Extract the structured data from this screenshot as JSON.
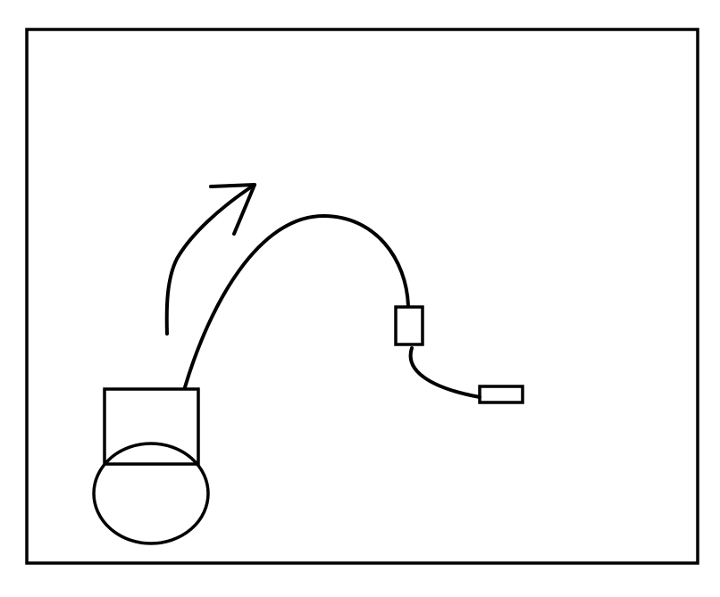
{
  "diagram": {
    "stroke_color": "#000000",
    "background_color": "#ffffff",
    "elements": [
      "frame-border",
      "curved-arrow",
      "base-box",
      "base-ellipse",
      "arc-cable",
      "small-box",
      "short-cable",
      "small-plug"
    ]
  }
}
